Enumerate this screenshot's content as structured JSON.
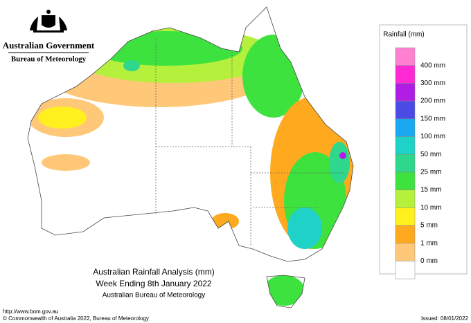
{
  "header": {
    "government": "Australian Government",
    "agency": "Bureau of Meteorology"
  },
  "legend": {
    "title": "Rainfall (mm)",
    "colors": [
      "#ff7fd0",
      "#ff2ad4",
      "#b01ee6",
      "#4a4ae6",
      "#19a9f0",
      "#1ed2c8",
      "#2ed78c",
      "#3ee23e",
      "#b4f03c",
      "#fff01e",
      "#ffaa1e",
      "#ffc878",
      "#ffffff"
    ],
    "labels": [
      "400 mm",
      "300 mm",
      "200 mm",
      "150 mm",
      "100 mm",
      "50 mm",
      "25 mm",
      "15 mm",
      "10 mm",
      "5 mm",
      "1 mm",
      "0 mm"
    ]
  },
  "caption": {
    "line1": "Australian Rainfall Analysis (mm)",
    "line2": "Week Ending 8th January 2022",
    "line3": "Australian Bureau of Meteorology"
  },
  "footer": {
    "url": "http://www.bom.gov.au",
    "copyright": "© Commonwealth of Australia 2022, Bureau of Meteorology",
    "issued": "Issued: 08/01/2022"
  }
}
